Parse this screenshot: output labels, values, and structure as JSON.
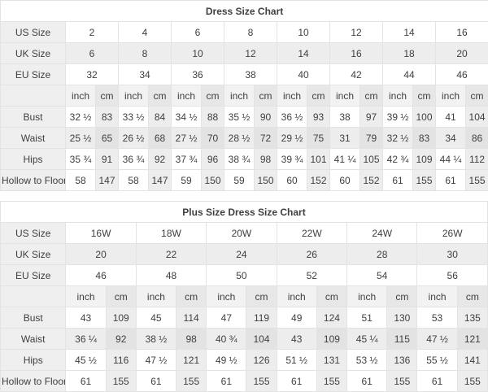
{
  "colors": {
    "background": "#ffffff",
    "label_column_bg": "#efefef",
    "stripe_gray": "#ededed",
    "stripe_gray_dark": "#e3e3e3",
    "unit_inch_bg": "#f2f2f2",
    "unit_cm_bg": "#e7e7e7",
    "cell_border": "#e3e3e3",
    "text": "#3f3f3f",
    "title_text": "#0f0f0f"
  },
  "chart_data": [
    {
      "type": "table",
      "title": "Dress Size Chart",
      "unit_labels": [
        "inch",
        "cm"
      ],
      "size_rows": [
        {
          "label": "US Size",
          "values": [
            "2",
            "4",
            "6",
            "8",
            "10",
            "12",
            "14",
            "16"
          ]
        },
        {
          "label": "UK Size",
          "values": [
            "6",
            "8",
            "10",
            "12",
            "14",
            "16",
            "18",
            "20"
          ]
        },
        {
          "label": "EU Size",
          "values": [
            "32",
            "34",
            "36",
            "38",
            "40",
            "42",
            "44",
            "46"
          ]
        }
      ],
      "measure_rows": [
        {
          "label": "Bust",
          "pairs": [
            [
              "32 ½",
              "83"
            ],
            [
              "33 ½",
              "84"
            ],
            [
              "34 ½",
              "88"
            ],
            [
              "35 ½",
              "90"
            ],
            [
              "36 ½",
              "93"
            ],
            [
              "38",
              "97"
            ],
            [
              "39 ½",
              "100"
            ],
            [
              "41",
              "104"
            ]
          ]
        },
        {
          "label": "Waist",
          "pairs": [
            [
              "25 ½",
              "65"
            ],
            [
              "26 ½",
              "68"
            ],
            [
              "27 ½",
              "70"
            ],
            [
              "28 ½",
              "72"
            ],
            [
              "29 ½",
              "75"
            ],
            [
              "31",
              "79"
            ],
            [
              "32 ½",
              "83"
            ],
            [
              "34",
              "86"
            ]
          ]
        },
        {
          "label": "Hips",
          "pairs": [
            [
              "35 ¾",
              "91"
            ],
            [
              "36 ¾",
              "92"
            ],
            [
              "37 ¾",
              "96"
            ],
            [
              "38 ¾",
              "98"
            ],
            [
              "39 ¾",
              "101"
            ],
            [
              "41 ¼",
              "105"
            ],
            [
              "42 ¾",
              "109"
            ],
            [
              "44 ¼",
              "112"
            ]
          ]
        },
        {
          "label": "Hollow to Floor",
          "pairs": [
            [
              "58",
              "147"
            ],
            [
              "58",
              "147"
            ],
            [
              "59",
              "150"
            ],
            [
              "59",
              "150"
            ],
            [
              "60",
              "152"
            ],
            [
              "60",
              "152"
            ],
            [
              "61",
              "155"
            ],
            [
              "61",
              "155"
            ]
          ]
        }
      ]
    },
    {
      "type": "table",
      "title": "Plus Size Dress Size Chart",
      "unit_labels": [
        "inch",
        "cm"
      ],
      "size_rows": [
        {
          "label": "US Size",
          "values": [
            "16W",
            "18W",
            "20W",
            "22W",
            "24W",
            "26W"
          ]
        },
        {
          "label": "UK Size",
          "values": [
            "20",
            "22",
            "24",
            "26",
            "28",
            "30"
          ]
        },
        {
          "label": "EU Size",
          "values": [
            "46",
            "48",
            "50",
            "52",
            "54",
            "56"
          ]
        }
      ],
      "measure_rows": [
        {
          "label": "Bust",
          "pairs": [
            [
              "43",
              "109"
            ],
            [
              "45",
              "114"
            ],
            [
              "47",
              "119"
            ],
            [
              "49",
              "124"
            ],
            [
              "51",
              "130"
            ],
            [
              "53",
              "135"
            ]
          ]
        },
        {
          "label": "Waist",
          "pairs": [
            [
              "36 ¼",
              "92"
            ],
            [
              "38 ½",
              "98"
            ],
            [
              "40 ¾",
              "104"
            ],
            [
              "43",
              "109"
            ],
            [
              "45 ¼",
              "115"
            ],
            [
              "47 ½",
              "121"
            ]
          ]
        },
        {
          "label": "Hips",
          "pairs": [
            [
              "45 ½",
              "116"
            ],
            [
              "47 ½",
              "121"
            ],
            [
              "49 ½",
              "126"
            ],
            [
              "51 ½",
              "131"
            ],
            [
              "53 ½",
              "136"
            ],
            [
              "55 ½",
              "141"
            ]
          ]
        },
        {
          "label": "Hollow to Floor",
          "pairs": [
            [
              "61",
              "155"
            ],
            [
              "61",
              "155"
            ],
            [
              "61",
              "155"
            ],
            [
              "61",
              "155"
            ],
            [
              "61",
              "155"
            ],
            [
              "61",
              "155"
            ]
          ]
        }
      ]
    }
  ]
}
